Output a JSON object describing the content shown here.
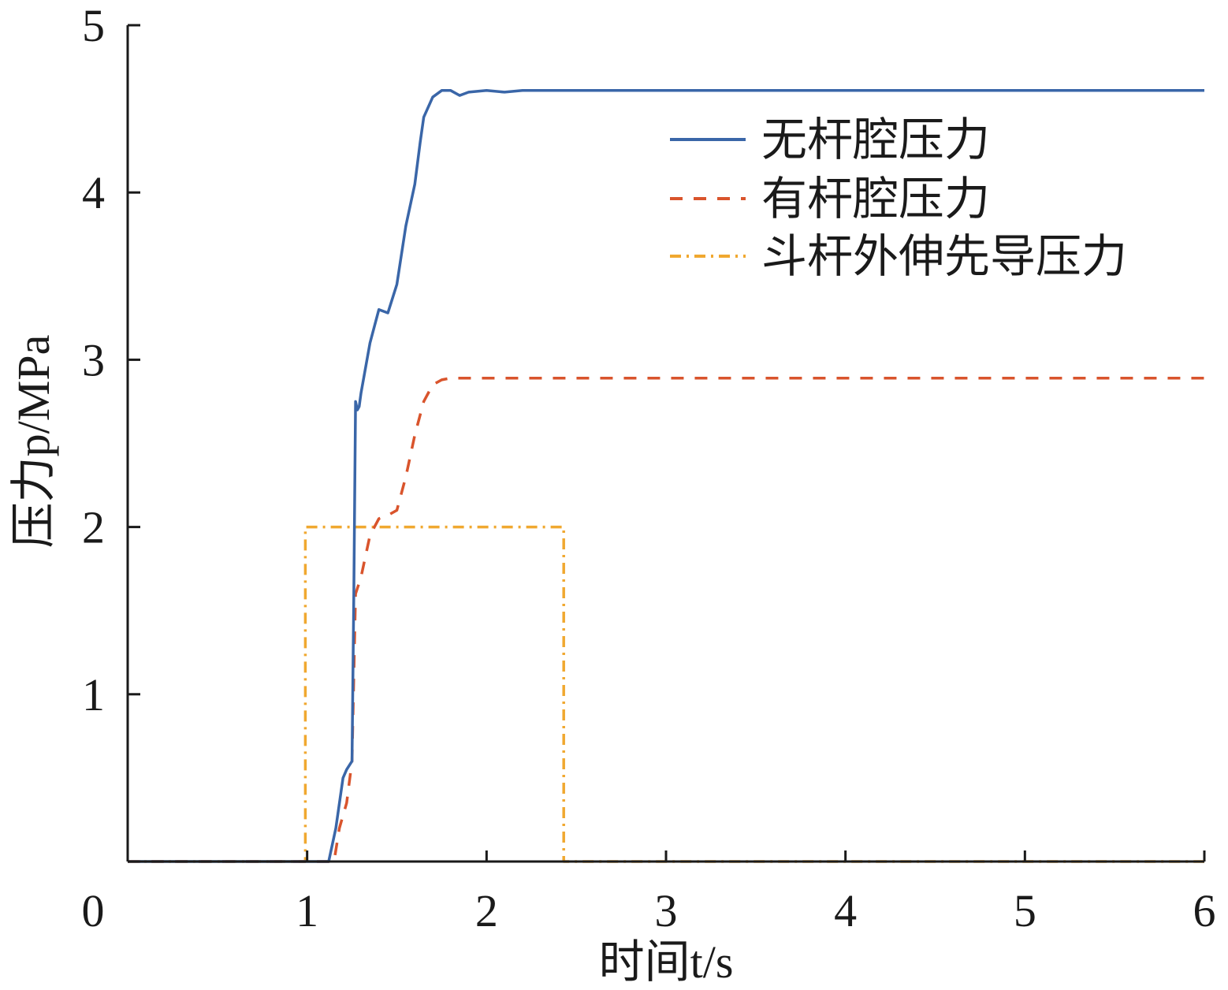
{
  "chart_data": {
    "type": "line",
    "xlabel": "时间t/s",
    "ylabel": "压力p/MPa",
    "xlim": [
      0,
      6
    ],
    "ylim": [
      0,
      5
    ],
    "xticks": [
      0,
      1,
      2,
      3,
      4,
      5,
      6
    ],
    "yticks": [
      1,
      2,
      3,
      4,
      5
    ],
    "xtick_labels": [
      "0",
      "1",
      "2",
      "3",
      "4",
      "5",
      "6"
    ],
    "ytick_labels": [
      "1",
      "2",
      "3",
      "4",
      "5"
    ],
    "grid": false,
    "legend_position": "top-right",
    "series": [
      {
        "name": "无杆腔压力",
        "color": "#3a66a8",
        "style": "solid",
        "x": [
          0,
          1.0,
          1.12,
          1.16,
          1.2,
          1.22,
          1.25,
          1.26,
          1.27,
          1.28,
          1.29,
          1.3,
          1.35,
          1.4,
          1.45,
          1.5,
          1.55,
          1.6,
          1.63,
          1.65,
          1.7,
          1.75,
          1.8,
          1.85,
          1.9,
          2.0,
          2.1,
          2.2,
          2.5,
          3,
          4,
          5,
          6
        ],
        "y": [
          0,
          0,
          0,
          0.2,
          0.5,
          0.55,
          0.6,
          1.6,
          2.75,
          2.7,
          2.72,
          2.8,
          3.1,
          3.3,
          3.28,
          3.45,
          3.8,
          4.05,
          4.3,
          4.45,
          4.57,
          4.61,
          4.61,
          4.58,
          4.6,
          4.61,
          4.6,
          4.61,
          4.61,
          4.61,
          4.61,
          4.61,
          4.61
        ]
      },
      {
        "name": "有杆腔压力",
        "color": "#d9542c",
        "style": "dashed",
        "x": [
          0,
          1.0,
          1.15,
          1.18,
          1.22,
          1.25,
          1.27,
          1.3,
          1.35,
          1.4,
          1.45,
          1.5,
          1.55,
          1.6,
          1.65,
          1.7,
          1.75,
          1.8,
          1.9,
          2.0,
          2.5,
          3,
          4,
          5,
          6
        ],
        "y": [
          0,
          0,
          0,
          0.2,
          0.35,
          0.6,
          1.6,
          1.7,
          1.95,
          2.05,
          2.07,
          2.1,
          2.3,
          2.55,
          2.75,
          2.85,
          2.88,
          2.89,
          2.89,
          2.89,
          2.89,
          2.89,
          2.89,
          2.89,
          2.89
        ]
      },
      {
        "name": "斗杆外伸先导压力",
        "color": "#f0a830",
        "style": "dashdot",
        "x": [
          0,
          0.99,
          0.99,
          2.43,
          2.43,
          6
        ],
        "y": [
          0,
          0,
          2.0,
          2.0,
          0,
          0
        ]
      }
    ]
  }
}
